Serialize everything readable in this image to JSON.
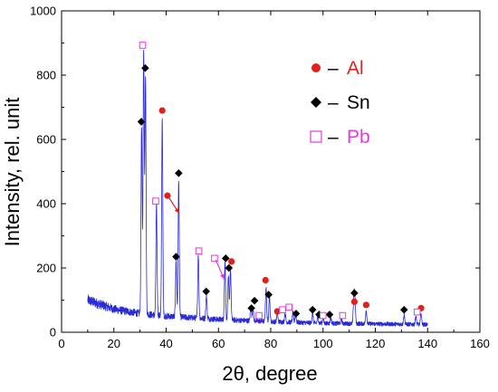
{
  "chart_data": {
    "type": "line",
    "xlabel": "2θ, degree",
    "ylabel": "Intensity, rel. unit",
    "xlim": [
      0,
      160
    ],
    "ylim": [
      0,
      1000
    ],
    "xticks": [
      0,
      20,
      40,
      60,
      80,
      100,
      120,
      140,
      160
    ],
    "yticks": [
      0,
      200,
      400,
      600,
      800,
      1000
    ],
    "grid": false,
    "legend_position": "top-right",
    "line_color": "#2a2ad8",
    "baseline_range": [
      10,
      140
    ],
    "background": [
      [
        10,
        100
      ],
      [
        20,
        72
      ],
      [
        30,
        58
      ],
      [
        40,
        50
      ],
      [
        60,
        40
      ],
      [
        80,
        33
      ],
      [
        100,
        28
      ],
      [
        120,
        26
      ],
      [
        140,
        24
      ]
    ],
    "peaks": [
      {
        "x": 30.6,
        "y": 640
      },
      {
        "x": 31.4,
        "y": 880
      },
      {
        "x": 32.1,
        "y": 800
      },
      {
        "x": 36.3,
        "y": 400
      },
      {
        "x": 38.5,
        "y": 670
      },
      {
        "x": 43.8,
        "y": 220
      },
      {
        "x": 44.8,
        "y": 470
      },
      {
        "x": 52.3,
        "y": 245
      },
      {
        "x": 55.4,
        "y": 115
      },
      {
        "x": 62.5,
        "y": 225
      },
      {
        "x": 63.8,
        "y": 175
      },
      {
        "x": 64.6,
        "y": 200
      },
      {
        "x": 72.4,
        "y": 85
      },
      {
        "x": 73.2,
        "y": 75
      },
      {
        "x": 78.2,
        "y": 140
      },
      {
        "x": 79.5,
        "y": 110
      },
      {
        "x": 82.5,
        "y": 60
      },
      {
        "x": 85.5,
        "y": 60
      },
      {
        "x": 88.5,
        "y": 60
      },
      {
        "x": 89.5,
        "y": 55
      },
      {
        "x": 96.0,
        "y": 60
      },
      {
        "x": 98.0,
        "y": 48
      },
      {
        "x": 100.0,
        "y": 45
      },
      {
        "x": 103.0,
        "y": 45
      },
      {
        "x": 107.0,
        "y": 42
      },
      {
        "x": 111.8,
        "y": 115
      },
      {
        "x": 112.2,
        "y": 95
      },
      {
        "x": 116.5,
        "y": 70
      },
      {
        "x": 131.0,
        "y": 55
      },
      {
        "x": 135.5,
        "y": 50
      },
      {
        "x": 137.5,
        "y": 60
      }
    ],
    "series": [
      {
        "name": "Al",
        "color": "#e0201b",
        "marker": "circle",
        "points": [
          [
            38.5,
            690
          ],
          [
            40.5,
            425
          ],
          [
            65.0,
            220
          ],
          [
            78.0,
            162
          ],
          [
            82.5,
            65
          ],
          [
            112.0,
            95
          ],
          [
            116.5,
            85
          ],
          [
            137.5,
            75
          ]
        ]
      },
      {
        "name": "Sn",
        "color": "#000000",
        "marker": "diamond",
        "points": [
          [
            30.5,
            655
          ],
          [
            32.0,
            822
          ],
          [
            43.8,
            235
          ],
          [
            44.8,
            495
          ],
          [
            55.3,
            127
          ],
          [
            62.8,
            230
          ],
          [
            64.0,
            200
          ],
          [
            72.6,
            75
          ],
          [
            73.8,
            98
          ],
          [
            79.2,
            117
          ],
          [
            89.7,
            58
          ],
          [
            96.0,
            70
          ],
          [
            98.5,
            55
          ],
          [
            102.5,
            55
          ],
          [
            112.0,
            122
          ],
          [
            131.0,
            70
          ]
        ]
      },
      {
        "name": "Pb",
        "color": "#e838d8",
        "marker": "square-open",
        "points": [
          [
            31.0,
            893
          ],
          [
            36.0,
            408
          ],
          [
            52.5,
            253
          ],
          [
            58.5,
            230
          ],
          [
            75.5,
            52
          ],
          [
            84.5,
            70
          ],
          [
            87.0,
            78
          ],
          [
            100.0,
            52
          ],
          [
            107.5,
            52
          ],
          [
            136.0,
            63
          ]
        ]
      }
    ],
    "legend": {
      "items": [
        {
          "marker": "circle",
          "color": "#e0201b",
          "dash": "–",
          "label": "Al"
        },
        {
          "marker": "diamond",
          "color": "#000000",
          "dash": "–",
          "label": "Sn"
        },
        {
          "marker": "square-open",
          "color": "#e838d8",
          "dash": "–",
          "label": "Pb"
        }
      ]
    },
    "arrows": [
      {
        "from": [
          40.8,
          422
        ],
        "to": [
          45.0,
          370
        ],
        "color": "#e0201b"
      },
      {
        "from": [
          59.0,
          225
        ],
        "to": [
          62.2,
          165
        ],
        "color": "#e838d8"
      }
    ]
  }
}
